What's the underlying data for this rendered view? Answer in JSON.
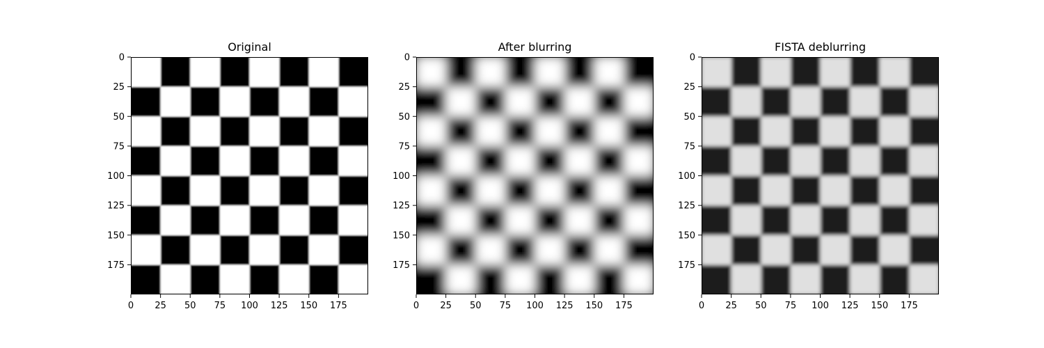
{
  "chart_data": [
    {
      "type": "heatmap",
      "title": "Original",
      "image_size": [
        200,
        200
      ],
      "pattern": "checkerboard",
      "squares_per_side": 8,
      "square_size": 25,
      "blur_sigma": 0.6,
      "levels": {
        "low": 0.0,
        "high": 1.0
      },
      "top_left_value": 1.0,
      "colormap": "gray",
      "xlim": [
        0,
        200
      ],
      "ylim": [
        200,
        0
      ],
      "xticks": [
        0,
        25,
        50,
        75,
        100,
        125,
        150,
        175
      ],
      "yticks": [
        0,
        25,
        50,
        75,
        100,
        125,
        150,
        175
      ],
      "xlabel": "",
      "ylabel": ""
    },
    {
      "type": "heatmap",
      "title": "After blurring",
      "image_size": [
        200,
        200
      ],
      "pattern": "checkerboard",
      "squares_per_side": 8,
      "square_size": 25,
      "blur_sigma": 4.5,
      "levels": {
        "low": 0.0,
        "high": 1.0
      },
      "top_left_value": 1.0,
      "colormap": "gray",
      "xlim": [
        0,
        200
      ],
      "ylim": [
        200,
        0
      ],
      "xticks": [
        0,
        25,
        50,
        75,
        100,
        125,
        150,
        175
      ],
      "yticks": [
        0,
        25,
        50,
        75,
        100,
        125,
        150,
        175
      ],
      "xlabel": "",
      "ylabel": ""
    },
    {
      "type": "heatmap",
      "title": "FISTA deblurring",
      "image_size": [
        200,
        200
      ],
      "pattern": "checkerboard",
      "squares_per_side": 8,
      "square_size": 25,
      "blur_sigma": 1.5,
      "levels": {
        "low": 0.12,
        "high": 0.88
      },
      "top_left_value": 1.0,
      "colormap": "gray",
      "xlim": [
        0,
        200
      ],
      "ylim": [
        200,
        0
      ],
      "xticks": [
        0,
        25,
        50,
        75,
        100,
        125,
        150,
        175
      ],
      "yticks": [
        0,
        25,
        50,
        75,
        100,
        125,
        150,
        175
      ],
      "xlabel": "",
      "ylabel": ""
    }
  ]
}
